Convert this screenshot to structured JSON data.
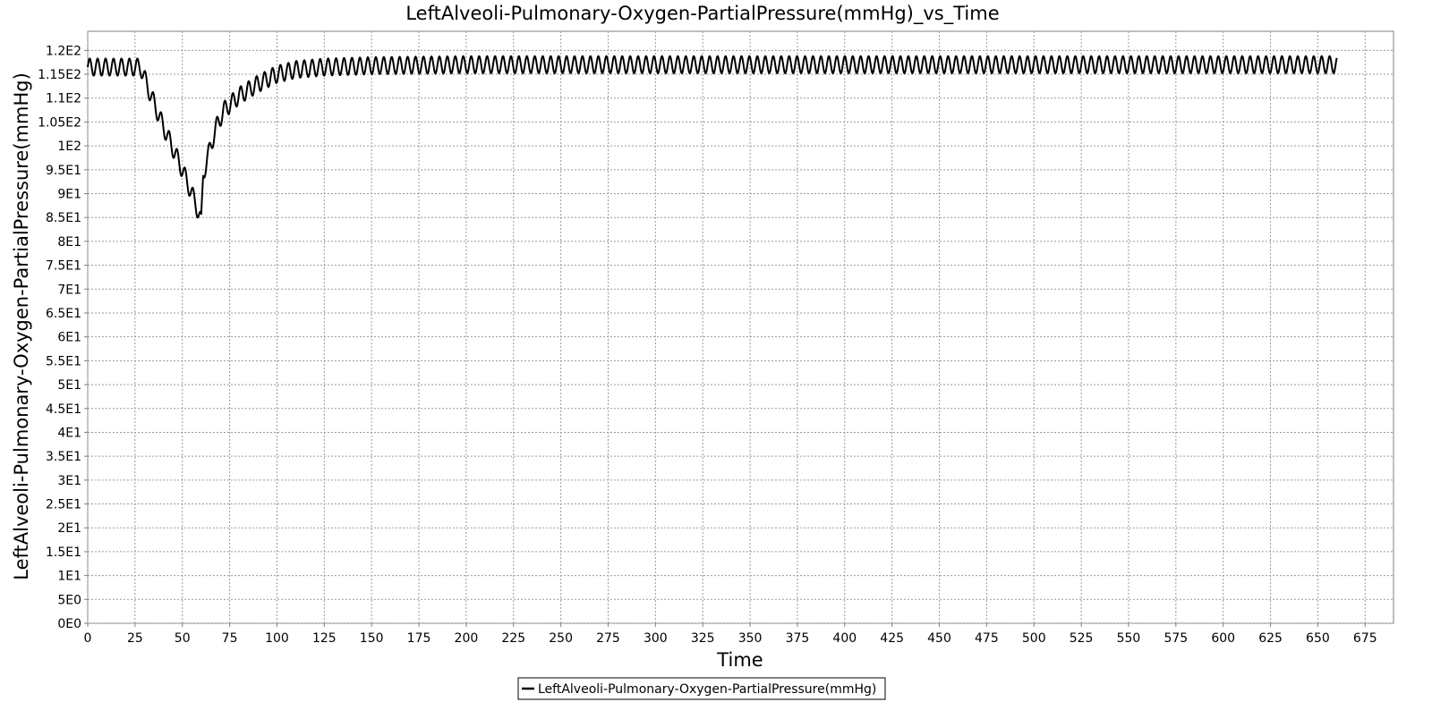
{
  "chart_data": {
    "type": "line",
    "title": "LeftAlveoli-Pulmonary-Oxygen-PartialPressure(mmHg)_vs_Time",
    "xlabel": "Time",
    "ylabel": "LeftAlveoli-Pulmonary-Oxygen-PartialPressure(mmHg)",
    "xlim": [
      0,
      690
    ],
    "ylim": [
      0,
      124
    ],
    "x_ticks": [
      0,
      25,
      50,
      75,
      100,
      125,
      150,
      175,
      200,
      225,
      250,
      275,
      300,
      325,
      350,
      375,
      400,
      425,
      450,
      475,
      500,
      525,
      550,
      575,
      600,
      625,
      650,
      675
    ],
    "y_ticks": [
      {
        "value": 0,
        "label": "0E0"
      },
      {
        "value": 5,
        "label": "5E0"
      },
      {
        "value": 10,
        "label": "1E1"
      },
      {
        "value": 15,
        "label": "1.5E1"
      },
      {
        "value": 20,
        "label": "2E1"
      },
      {
        "value": 25,
        "label": "2.5E1"
      },
      {
        "value": 30,
        "label": "3E1"
      },
      {
        "value": 35,
        "label": "3.5E1"
      },
      {
        "value": 40,
        "label": "4E1"
      },
      {
        "value": 45,
        "label": "4.5E1"
      },
      {
        "value": 50,
        "label": "5E1"
      },
      {
        "value": 55,
        "label": "5.5E1"
      },
      {
        "value": 60,
        "label": "6E1"
      },
      {
        "value": 65,
        "label": "6.5E1"
      },
      {
        "value": 70,
        "label": "7E1"
      },
      {
        "value": 75,
        "label": "7.5E1"
      },
      {
        "value": 80,
        "label": "8E1"
      },
      {
        "value": 85,
        "label": "8.5E1"
      },
      {
        "value": 90,
        "label": "9E1"
      },
      {
        "value": 95,
        "label": "9.5E1"
      },
      {
        "value": 100,
        "label": "1E2"
      },
      {
        "value": 105,
        "label": "1.05E2"
      },
      {
        "value": 110,
        "label": "1.1E2"
      },
      {
        "value": 115,
        "label": "1.15E2"
      },
      {
        "value": 120,
        "label": "1.2E2"
      }
    ],
    "grid": true,
    "legend_position": "bottom-center",
    "series": [
      {
        "name": "LeftAlveoli-Pulmonary-Oxygen-PartialPressure(mmHg)",
        "color": "#000000",
        "x": [
          0,
          28,
          32,
          40,
          50,
          57,
          60,
          61,
          63,
          65,
          68,
          72,
          80,
          90,
          100,
          110,
          125,
          150,
          200,
          300,
          400,
          500,
          600,
          660
        ],
        "y": [
          116.5,
          116.5,
          112,
          104,
          95,
          88,
          84,
          94,
          97,
          100,
          104,
          107.5,
          110.5,
          113,
          115,
          116,
          116.5,
          116.8,
          117,
          117,
          117,
          117,
          117,
          117
        ],
        "oscillation": {
          "period": 4.2,
          "amplitude": 1.8
        }
      }
    ]
  }
}
